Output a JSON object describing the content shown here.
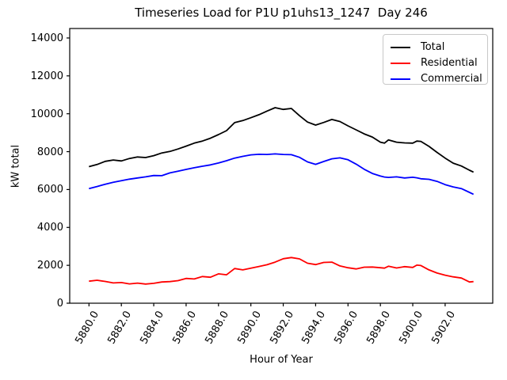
{
  "figure": {
    "background": "#ffffff"
  },
  "chart_data": {
    "type": "line",
    "title": "Timeseries Load for P1U p1uhs13_1247  Day 246",
    "xlabel": "Hour of Year",
    "ylabel": "kW total",
    "xlim": [
      5878.81,
      5904.94
    ],
    "ylim": [
      0,
      14500
    ],
    "grid": false,
    "legend_position": "upper right",
    "x_ticks": {
      "values": [
        5880,
        5882,
        5884,
        5886,
        5888,
        5890,
        5892,
        5894,
        5896,
        5898,
        5900,
        5902
      ],
      "labels": [
        "5880.0",
        "5882.0",
        "5884.0",
        "5886.0",
        "5888.0",
        "5890.0",
        "5892.0",
        "5894.0",
        "5896.0",
        "5898.0",
        "5900.0",
        "5902.0"
      ]
    },
    "y_ticks": {
      "values": [
        0,
        2000,
        4000,
        6000,
        8000,
        10000,
        12000,
        14000
      ],
      "labels": [
        "0",
        "2000",
        "4000",
        "6000",
        "8000",
        "10000",
        "12000",
        "14000"
      ]
    },
    "x": [
      5880,
      5880.5,
      5881,
      5881.5,
      5882,
      5882.5,
      5883,
      5883.5,
      5884,
      5884.5,
      5885,
      5885.5,
      5886,
      5886.5,
      5887,
      5887.5,
      5888,
      5888.5,
      5889,
      5889.5,
      5890,
      5890.5,
      5891,
      5891.5,
      5892,
      5892.5,
      5893,
      5893.5,
      5894,
      5894.5,
      5895,
      5895.5,
      5896,
      5896.5,
      5897,
      5897.5,
      5898,
      5898.25,
      5898.5,
      5899,
      5899.5,
      5900,
      5900.25,
      5900.5,
      5901,
      5901.5,
      5902,
      5902.5,
      5903,
      5903.5,
      5903.75
    ],
    "series": [
      {
        "name": "Total",
        "color": "#000000",
        "values": [
          7210,
          7320,
          7490,
          7560,
          7510,
          7640,
          7720,
          7690,
          7790,
          7930,
          8010,
          8140,
          8290,
          8450,
          8560,
          8710,
          8900,
          9110,
          9530,
          9640,
          9790,
          9950,
          10140,
          10320,
          10230,
          10280,
          9900,
          9560,
          9400,
          9540,
          9700,
          9590,
          9360,
          9150,
          8940,
          8770,
          8500,
          8450,
          8620,
          8500,
          8460,
          8450,
          8560,
          8540,
          8280,
          7960,
          7660,
          7390,
          7240,
          7020,
          6920
        ]
      },
      {
        "name": "Residential",
        "color": "#ff0000",
        "values": [
          1160,
          1210,
          1150,
          1070,
          1090,
          1020,
          1060,
          1010,
          1050,
          1120,
          1140,
          1190,
          1310,
          1280,
          1410,
          1370,
          1550,
          1500,
          1830,
          1760,
          1850,
          1940,
          2030,
          2170,
          2350,
          2410,
          2340,
          2110,
          2040,
          2150,
          2170,
          1970,
          1870,
          1810,
          1900,
          1910,
          1870,
          1850,
          1950,
          1860,
          1930,
          1890,
          2010,
          1990,
          1760,
          1590,
          1480,
          1390,
          1330,
          1120,
          1140
        ]
      },
      {
        "name": "Commercial",
        "color": "#0000ff",
        "values": [
          6050,
          6160,
          6280,
          6380,
          6470,
          6550,
          6610,
          6670,
          6740,
          6730,
          6880,
          6970,
          7060,
          7150,
          7230,
          7300,
          7400,
          7520,
          7660,
          7750,
          7830,
          7860,
          7850,
          7880,
          7850,
          7840,
          7700,
          7460,
          7330,
          7480,
          7620,
          7670,
          7570,
          7340,
          7070,
          6850,
          6710,
          6660,
          6640,
          6670,
          6610,
          6650,
          6620,
          6570,
          6540,
          6430,
          6260,
          6140,
          6050,
          5850,
          5750
        ]
      }
    ]
  }
}
